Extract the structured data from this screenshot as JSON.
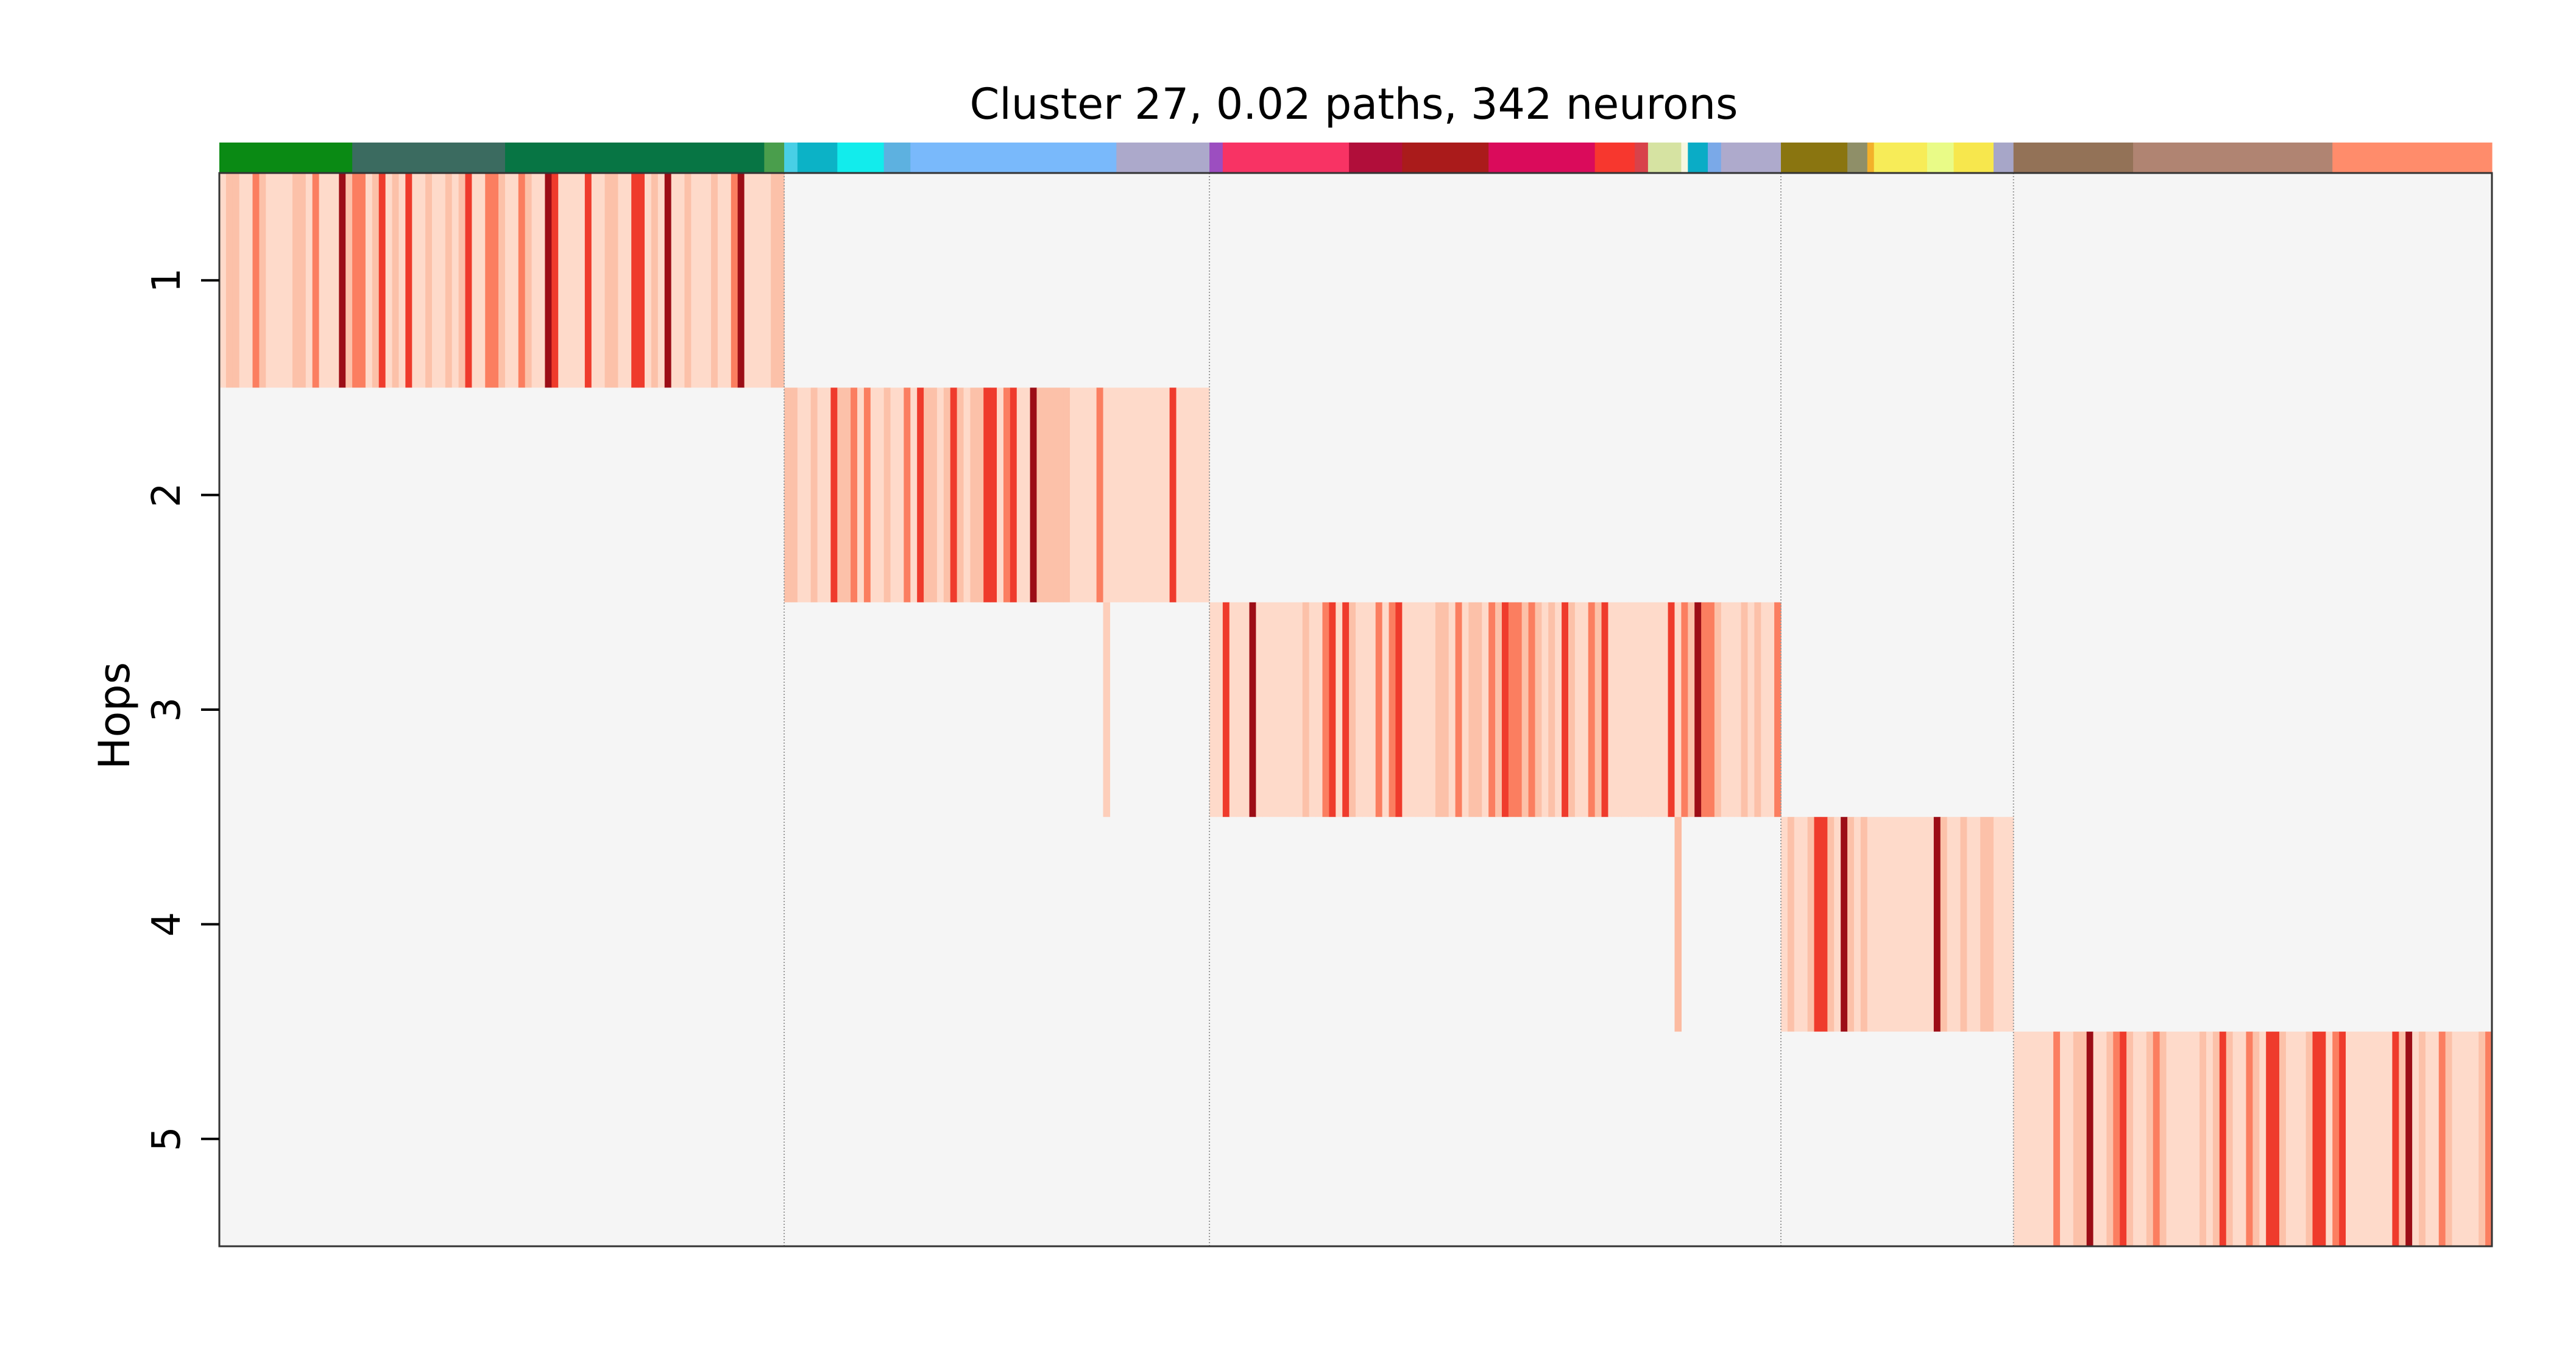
{
  "chart_data": {
    "type": "heatmap",
    "title": "Cluster 27, 0.02 paths, 342 neurons",
    "ylabel": "Hops",
    "xlabel": "",
    "y_categories": [
      "1",
      "2",
      "3",
      "4",
      "5"
    ],
    "n_neurons": 342,
    "grid": false,
    "colormap": "Reds",
    "missing_color": "#f5f5f5",
    "neuron_groups": [
      {
        "hop": 1,
        "start": 0,
        "end": 85
      },
      {
        "hop": 2,
        "start": 85,
        "end": 149
      },
      {
        "hop": 3,
        "start": 149,
        "end": 235
      },
      {
        "hop": 4,
        "start": 235,
        "end": 270
      },
      {
        "hop": 5,
        "start": 270,
        "end": 342
      }
    ],
    "cross_hop_cells": [
      {
        "neuron": 133,
        "hop": 3,
        "level": 0.15
      },
      {
        "neuron": 219,
        "hop": 4,
        "level": 0.3
      }
    ],
    "color_bar": [
      {
        "start": 0,
        "end": 20,
        "color": "#0a8a14"
      },
      {
        "start": 20,
        "end": 43,
        "color": "#3b6b60"
      },
      {
        "start": 43,
        "end": 82,
        "color": "#077544"
      },
      {
        "start": 82,
        "end": 85,
        "color": "#4a9e4c"
      },
      {
        "start": 85,
        "end": 87,
        "color": "#48cfe6"
      },
      {
        "start": 87,
        "end": 93,
        "color": "#0cb2c6"
      },
      {
        "start": 93,
        "end": 100,
        "color": "#12ecec"
      },
      {
        "start": 100,
        "end": 104,
        "color": "#5db1e0"
      },
      {
        "start": 104,
        "end": 135,
        "color": "#79b9fb"
      },
      {
        "start": 135,
        "end": 149,
        "color": "#aca9cb"
      },
      {
        "start": 149,
        "end": 151,
        "color": "#9c4ec0"
      },
      {
        "start": 151,
        "end": 170,
        "color": "#f83364"
      },
      {
        "start": 170,
        "end": 178,
        "color": "#b10e3a"
      },
      {
        "start": 178,
        "end": 191,
        "color": "#aa1b1b"
      },
      {
        "start": 191,
        "end": 207,
        "color": "#da0b5b"
      },
      {
        "start": 207,
        "end": 213,
        "color": "#f7372e"
      },
      {
        "start": 213,
        "end": 215,
        "color": "#d8424a"
      },
      {
        "start": 215,
        "end": 220,
        "color": "#d6e3a2"
      },
      {
        "start": 220,
        "end": 221,
        "color": "#f7f7e0"
      },
      {
        "start": 221,
        "end": 224,
        "color": "#0aacc6"
      },
      {
        "start": 224,
        "end": 226,
        "color": "#7aa9e8"
      },
      {
        "start": 226,
        "end": 235,
        "color": "#aeaacc"
      },
      {
        "start": 235,
        "end": 245,
        "color": "#8a7510"
      },
      {
        "start": 245,
        "end": 248,
        "color": "#8f8f68"
      },
      {
        "start": 248,
        "end": 249,
        "color": "#f3b12a"
      },
      {
        "start": 249,
        "end": 257,
        "color": "#f7ec58"
      },
      {
        "start": 257,
        "end": 261,
        "color": "#e9fb87"
      },
      {
        "start": 261,
        "end": 267,
        "color": "#f7e74d"
      },
      {
        "start": 267,
        "end": 270,
        "color": "#a7a6c8"
      },
      {
        "start": 270,
        "end": 288,
        "color": "#937257"
      },
      {
        "start": 288,
        "end": 318,
        "color": "#b08472"
      },
      {
        "start": 318,
        "end": 342,
        "color": "#ff8c6b"
      }
    ]
  }
}
